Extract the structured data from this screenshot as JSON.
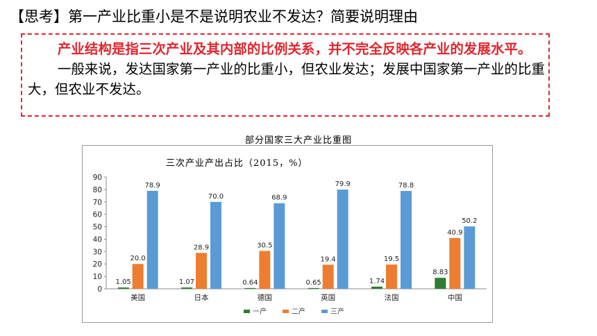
{
  "question": "【思考】第一产业比重小是不是说明农业不发达？简要说明理由",
  "answer": {
    "emphasis": "产业结构是指三次产业及其内部的比例关系，并不完全反映各产业的发展水平。",
    "body": "一般来说，发达国家第一产业的比重小，但农业发达；发展中国家第一产业的比重大，但农业不发达。"
  },
  "colors": {
    "accent_red": "#e0262d",
    "primary": "#2e7d32",
    "secondary": "#ed7d31",
    "tertiary": "#5b9bd5"
  },
  "chart_data": {
    "type": "bar",
    "title": "部分国家三大产业比重图",
    "inner_title": "三次产业产出占比（2015，%）",
    "categories": [
      "美国",
      "日本",
      "德国",
      "英国",
      "法国",
      "中国"
    ],
    "series": [
      {
        "name": "一产",
        "values": [
          1.05,
          1.07,
          0.64,
          0.65,
          1.74,
          8.83
        ],
        "labels": [
          "1.05",
          "1.07",
          "0.64",
          "0.65",
          "1.74",
          "8.83"
        ]
      },
      {
        "name": "二产",
        "values": [
          20.0,
          28.9,
          30.5,
          19.4,
          19.5,
          40.9
        ],
        "labels": [
          "20.0",
          "28.9",
          "30.5",
          "19.4",
          "19.5",
          "40.9"
        ]
      },
      {
        "name": "三产",
        "values": [
          78.9,
          70.0,
          68.9,
          79.9,
          78.8,
          50.2
        ],
        "labels": [
          "78.9",
          "70.0",
          "68.9",
          "79.9",
          "78.8",
          "50.2"
        ]
      }
    ],
    "yticks": [
      "0",
      "10",
      "20",
      "30",
      "40",
      "50",
      "60",
      "70",
      "80",
      "90"
    ],
    "ylim": [
      0,
      90
    ],
    "grid": false,
    "legend": "bottom"
  }
}
